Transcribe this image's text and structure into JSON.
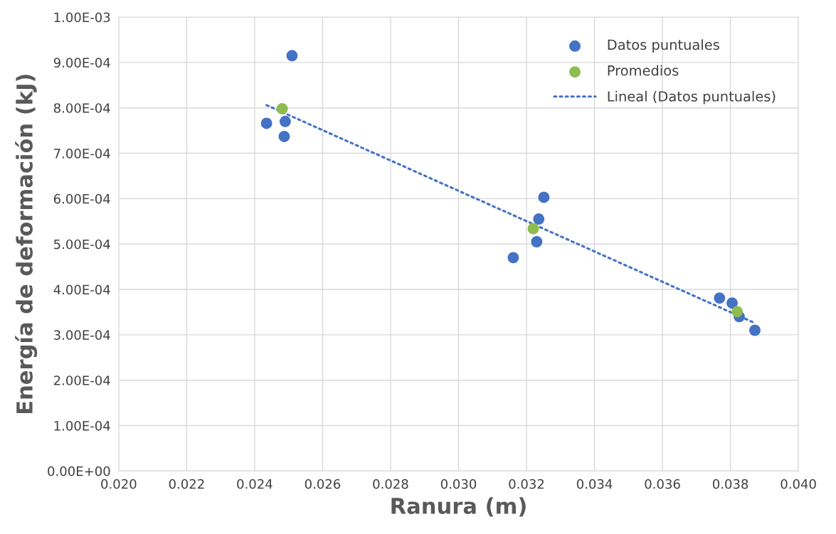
{
  "chart_data": {
    "type": "scatter",
    "xlabel": "Ranura (m)",
    "ylabel": "Energía de deformación (kJ)",
    "xlim": [
      0.02,
      0.04
    ],
    "xticks": [
      {
        "value": 0.02,
        "label": "0.020"
      },
      {
        "value": 0.022,
        "label": "0.022"
      },
      {
        "value": 0.024,
        "label": "0.024"
      },
      {
        "value": 0.026,
        "label": "0.026"
      },
      {
        "value": 0.028,
        "label": "0.028"
      },
      {
        "value": 0.03,
        "label": "0.030"
      },
      {
        "value": 0.032,
        "label": "0.032"
      },
      {
        "value": 0.034,
        "label": "0.034"
      },
      {
        "value": 0.036,
        "label": "0.036"
      },
      {
        "value": 0.038,
        "label": "0.038"
      },
      {
        "value": 0.04,
        "label": "0.040"
      }
    ],
    "ylim": [
      0,
      0.001
    ],
    "yticks": [
      {
        "value": 0,
        "label": "0.00E+00"
      },
      {
        "value": 0.0001,
        "label": "1.00E-04"
      },
      {
        "value": 0.0002,
        "label": "2.00E-04"
      },
      {
        "value": 0.0003,
        "label": "3.00E-04"
      },
      {
        "value": 0.0004,
        "label": "4.00E-04"
      },
      {
        "value": 0.0005,
        "label": "5.00E-04"
      },
      {
        "value": 0.0006,
        "label": "6.00E-04"
      },
      {
        "value": 0.0007,
        "label": "7.00E-04"
      },
      {
        "value": 0.0008,
        "label": "8.00E-04"
      },
      {
        "value": 0.0009,
        "label": "9.00E-04"
      },
      {
        "value": 0.001,
        "label": "1.00E-03"
      }
    ],
    "grid": true,
    "legend": "top right",
    "marker": "circle",
    "series": [
      {
        "name": "Datos puntuales",
        "color": "#4472c4",
        "x": [
          0.02435,
          0.0251,
          0.0249,
          0.02487,
          0.03251,
          0.03236,
          0.0323,
          0.03161,
          0.03768,
          0.03805,
          0.03826,
          0.03872
        ],
        "values": [
          0.000766,
          0.000915,
          0.00077,
          0.000737,
          0.000603,
          0.000555,
          0.000505,
          0.00047,
          0.000381,
          0.00037,
          0.00034,
          0.00031
        ]
      },
      {
        "name": "Promedios",
        "color": "#8fbc4f",
        "x": [
          0.02481,
          0.0322,
          0.0382
        ],
        "values": [
          0.000798,
          0.000534,
          0.000351
        ]
      },
      {
        "name": "Lineal (Datos puntuales)",
        "type": "line",
        "marker": "none",
        "line_style": "dotted",
        "color": "#4472c4",
        "x": [
          0.02435,
          0.03872
        ],
        "values": [
          0.000806,
          0.000326
        ]
      }
    ]
  }
}
